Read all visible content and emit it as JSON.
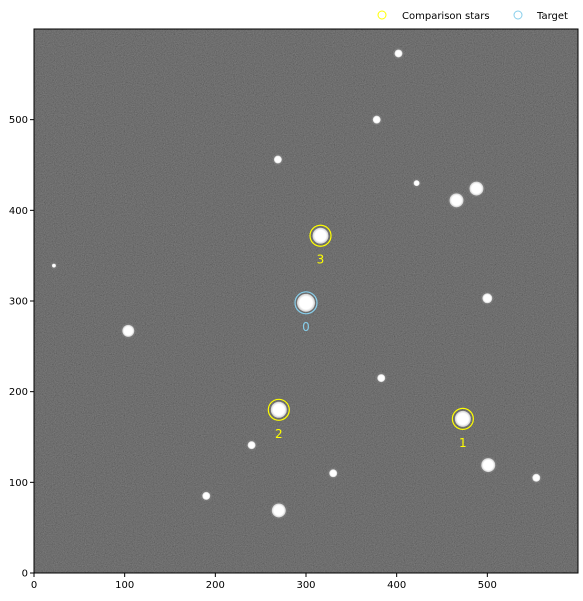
{
  "chart_data": {
    "type": "scatter",
    "xlim": [
      0,
      600
    ],
    "ylim": [
      0,
      600
    ],
    "xticks": [
      "0",
      "100",
      "200",
      "300",
      "400",
      "500"
    ],
    "yticks": [
      "0",
      "100",
      "200",
      "300",
      "400",
      "500"
    ],
    "grid": false,
    "legend_position": "top-right",
    "colors": {
      "comparison": "#ffff00",
      "target": "#87ceeb",
      "background": "#303030",
      "star": "#ffffff"
    },
    "legend": [
      {
        "label": "Comparison stars",
        "color": "#ffff00",
        "marker": "circle"
      },
      {
        "label": "Target",
        "color": "#87ceeb",
        "marker": "circle"
      }
    ],
    "target": {
      "label": "0",
      "x": 300,
      "y": 298
    },
    "comparison_stars": [
      {
        "label": "1",
        "x": 473,
        "y": 170
      },
      {
        "label": "2",
        "x": 270,
        "y": 180
      },
      {
        "label": "3",
        "x": 316,
        "y": 372
      }
    ],
    "stars": [
      {
        "x": 402,
        "y": 573,
        "r": 4
      },
      {
        "x": 378,
        "y": 500,
        "r": 4
      },
      {
        "x": 269,
        "y": 456,
        "r": 4
      },
      {
        "x": 422,
        "y": 430,
        "r": 3
      },
      {
        "x": 488,
        "y": 424,
        "r": 7
      },
      {
        "x": 466,
        "y": 411,
        "r": 7
      },
      {
        "x": 22,
        "y": 339,
        "r": 2
      },
      {
        "x": 500,
        "y": 303,
        "r": 5
      },
      {
        "x": 104,
        "y": 267,
        "r": 6
      },
      {
        "x": 383,
        "y": 215,
        "r": 4
      },
      {
        "x": 240,
        "y": 141,
        "r": 4
      },
      {
        "x": 501,
        "y": 119,
        "r": 7
      },
      {
        "x": 330,
        "y": 110,
        "r": 4
      },
      {
        "x": 554,
        "y": 105,
        "r": 4
      },
      {
        "x": 190,
        "y": 85,
        "r": 4
      },
      {
        "x": 270,
        "y": 69,
        "r": 7
      }
    ]
  }
}
